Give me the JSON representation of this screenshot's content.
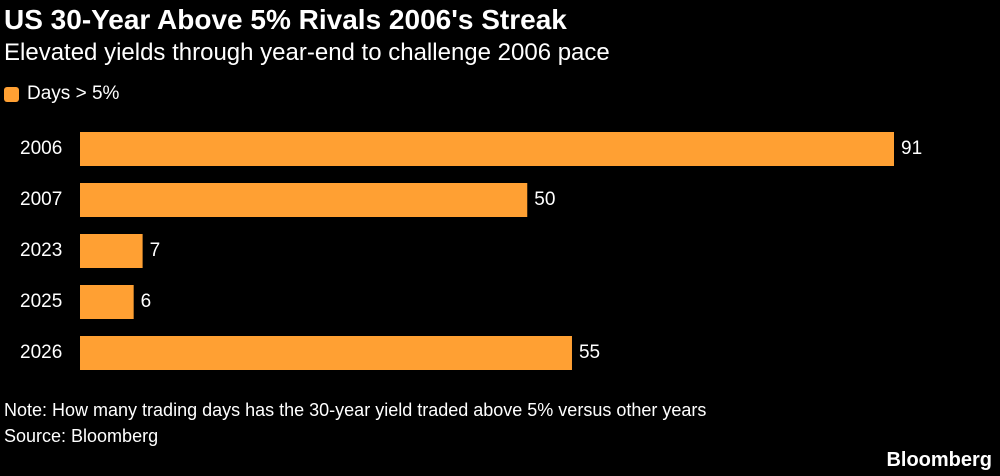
{
  "title": "US 30-Year Above 5% Rivals 2006's Streak",
  "subtitle": "Elevated yields through year-end to challenge 2006 pace",
  "legend": {
    "label": "Days > 5%",
    "color": "#ffa033"
  },
  "chart_data": {
    "type": "bar",
    "orientation": "horizontal",
    "categories": [
      "2006",
      "2007",
      "2023",
      "2025",
      "2026"
    ],
    "values": [
      91,
      50,
      7,
      6,
      55
    ],
    "title": "US 30-Year Above 5% Rivals 2006's Streak",
    "subtitle": "Elevated yields through year-end to challenge 2006 pace",
    "xlabel": "",
    "ylabel": "",
    "series": [
      {
        "name": "Days > 5%",
        "values": [
          91,
          50,
          7,
          6,
          55
        ]
      }
    ],
    "xlim": [
      0,
      91
    ],
    "grid": false,
    "legend_position": "top-left",
    "data_labels": true
  },
  "footer": {
    "note": "Note: How many trading days has the 30-year yield traded above 5% versus other years",
    "source": "Source: Bloomberg",
    "brand": "Bloomberg"
  }
}
